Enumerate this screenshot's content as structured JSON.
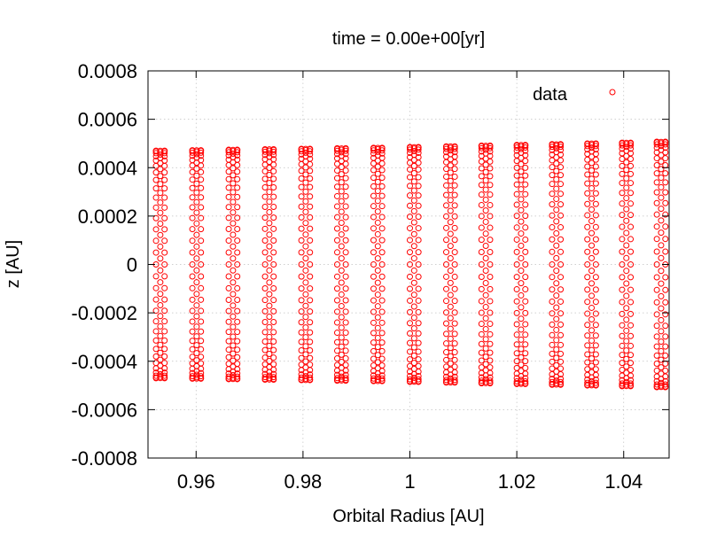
{
  "chart_data": {
    "type": "scatter",
    "title": "time = 0.00e+00[yr]",
    "xlabel": "Orbital Radius [AU]",
    "ylabel": "z [AU]",
    "xlim": [
      0.951,
      1.0485
    ],
    "ylim": [
      -0.0008,
      0.0008
    ],
    "x_ticks": [
      0.96,
      0.98,
      1.0,
      1.02,
      1.04
    ],
    "x_tick_labels": [
      "0.96",
      "0.98",
      "1",
      "1.02",
      "1.04"
    ],
    "y_ticks": [
      -0.0008,
      -0.0006,
      -0.0004,
      -0.0002,
      0,
      0.0002,
      0.0004,
      0.0006,
      0.0008
    ],
    "y_tick_labels": [
      "-0.0008",
      "-0.0006",
      "-0.0004",
      "-0.0002",
      "0",
      "0.0002",
      "0.0004",
      "0.0006",
      "0.0008"
    ],
    "grid": true,
    "legend_position": "top-right",
    "series": [
      {
        "name": "data",
        "color": "#ff0000",
        "marker": "open-circle",
        "columns_x": [
          0.9533,
          0.9601,
          0.9669,
          0.9737,
          0.9805,
          0.9872,
          0.994,
          1.0008,
          1.0076,
          1.0142,
          1.0208,
          1.0274,
          1.034,
          1.0405,
          1.047
        ],
        "column_max_abs_z": [
          0.00047,
          0.000472,
          0.000474,
          0.000476,
          0.000478,
          0.00048,
          0.000482,
          0.000485,
          0.000488,
          0.000491,
          0.000494,
          0.000497,
          0.0005,
          0.000503,
          0.000507
        ],
        "column_spread_x": 0.0016,
        "points_per_column_half": 30
      }
    ]
  }
}
